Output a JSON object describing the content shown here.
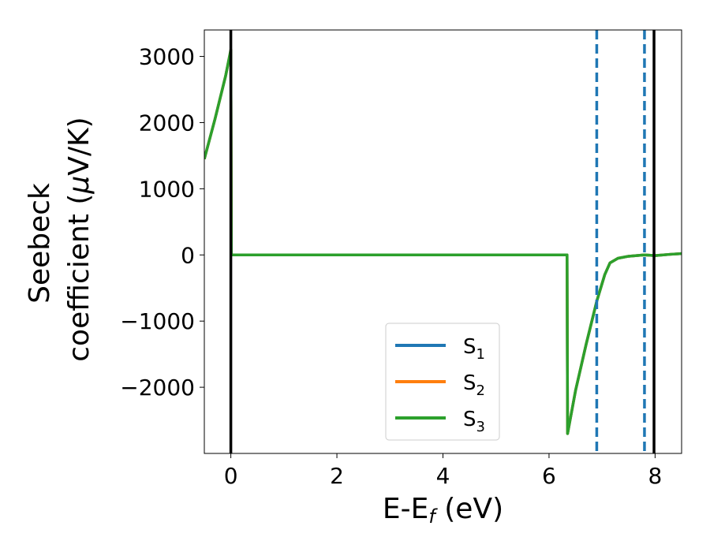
{
  "chart_data": {
    "type": "line",
    "title": "",
    "xlabel": "E-E",
    "xlabel_sub": "f",
    "xlabel_unit": " (eV)",
    "ylabel_line1": "Seebeck",
    "ylabel_line2": "coefficient  (",
    "ylabel_mu": "μ",
    "ylabel_unit": "V/K)",
    "xlim": [
      -0.5,
      8.5
    ],
    "ylim": [
      -3000,
      3400
    ],
    "x_ticks": [
      0,
      2,
      4,
      6,
      8
    ],
    "x_tick_labels": [
      "0",
      "2",
      "4",
      "6",
      "8"
    ],
    "y_ticks": [
      -2000,
      -1000,
      0,
      1000,
      2000,
      3000
    ],
    "y_tick_labels": [
      "−2000",
      "−1000",
      "0",
      "1000",
      "2000",
      "3000"
    ],
    "grid": false,
    "legend_position": "bottom-center",
    "series": [
      {
        "name": "S",
        "sub": "1",
        "color": "#1f77b4",
        "x": [
          -0.5,
          -0.3,
          -0.1,
          0.0,
          0.01,
          0.05,
          1.0,
          2.0,
          3.0,
          4.0,
          5.0,
          6.0,
          6.34,
          6.35,
          6.5,
          6.7,
          6.9,
          7.05,
          7.15,
          7.3,
          7.5,
          7.8,
          8.0,
          8.3,
          8.5
        ],
        "y": [
          1450,
          2050,
          2700,
          3100,
          0,
          0,
          0,
          0,
          0,
          0,
          0,
          0,
          0,
          -2700,
          -2050,
          -1350,
          -700,
          -300,
          -120,
          -50,
          -20,
          0,
          -10,
          10,
          20
        ]
      },
      {
        "name": "S",
        "sub": "2",
        "color": "#ff7f0e",
        "x": [
          -0.5,
          -0.3,
          -0.1,
          0.0,
          0.01,
          0.05,
          1.0,
          2.0,
          3.0,
          4.0,
          5.0,
          6.0,
          6.34,
          6.35,
          6.5,
          6.7,
          6.9,
          7.05,
          7.15,
          7.3,
          7.5,
          7.8,
          8.0,
          8.3,
          8.5
        ],
        "y": [
          1450,
          2050,
          2700,
          3100,
          0,
          0,
          0,
          0,
          0,
          0,
          0,
          0,
          0,
          -2700,
          -2050,
          -1350,
          -700,
          -300,
          -120,
          -50,
          -20,
          0,
          -10,
          10,
          20
        ]
      },
      {
        "name": "S",
        "sub": "3",
        "color": "#2ca02c",
        "x": [
          -0.5,
          -0.3,
          -0.1,
          0.0,
          0.01,
          0.05,
          1.0,
          2.0,
          3.0,
          4.0,
          5.0,
          6.0,
          6.34,
          6.35,
          6.5,
          6.7,
          6.9,
          7.05,
          7.15,
          7.3,
          7.5,
          7.8,
          8.0,
          8.3,
          8.5
        ],
        "y": [
          1450,
          2050,
          2700,
          3100,
          0,
          0,
          0,
          0,
          0,
          0,
          0,
          0,
          0,
          -2700,
          -2050,
          -1350,
          -700,
          -300,
          -120,
          -50,
          -20,
          0,
          -10,
          10,
          20
        ]
      }
    ],
    "vlines_solid": {
      "color": "#000000",
      "x": [
        0,
        7.98
      ]
    },
    "vlines_dashed": {
      "color": "#1f77b4",
      "x": [
        6.9,
        7.8
      ]
    }
  }
}
